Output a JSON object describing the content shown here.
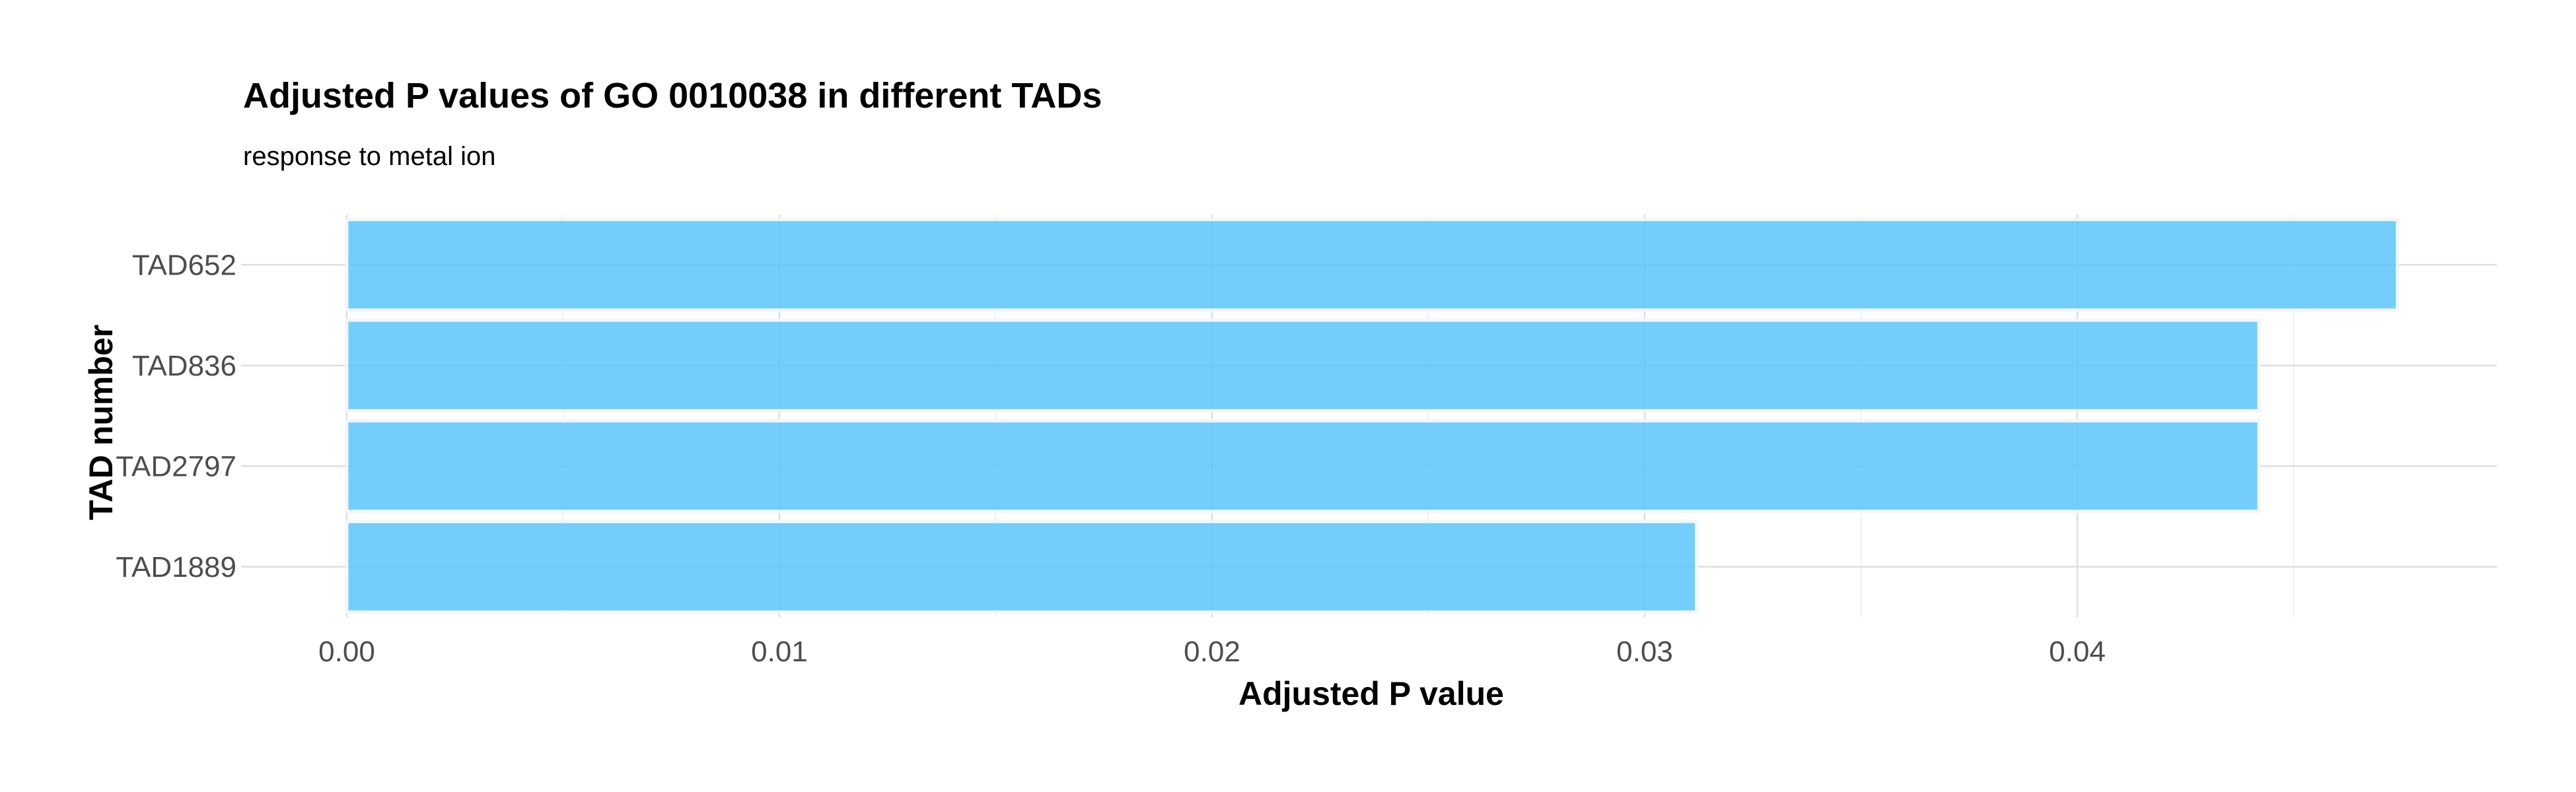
{
  "chart_data": {
    "type": "bar",
    "orientation": "horizontal",
    "title": "Adjusted P values of GO 0010038 in different TADs",
    "subtitle": "response to metal ion",
    "xlabel": "Adjusted P value",
    "ylabel": "TAD number",
    "categories": [
      "TAD652",
      "TAD836",
      "TAD2797",
      "TAD1889"
    ],
    "values": [
      0.0474,
      0.0442,
      0.0442,
      0.0312
    ],
    "xlim": [
      0,
      0.0493
    ],
    "xticks": [
      0.0,
      0.01,
      0.02,
      0.03,
      0.04
    ],
    "xtick_labels": [
      "0.00",
      "0.01",
      "0.02",
      "0.03",
      "0.04"
    ],
    "grid": true,
    "bar_color": "#5BC6FA"
  }
}
